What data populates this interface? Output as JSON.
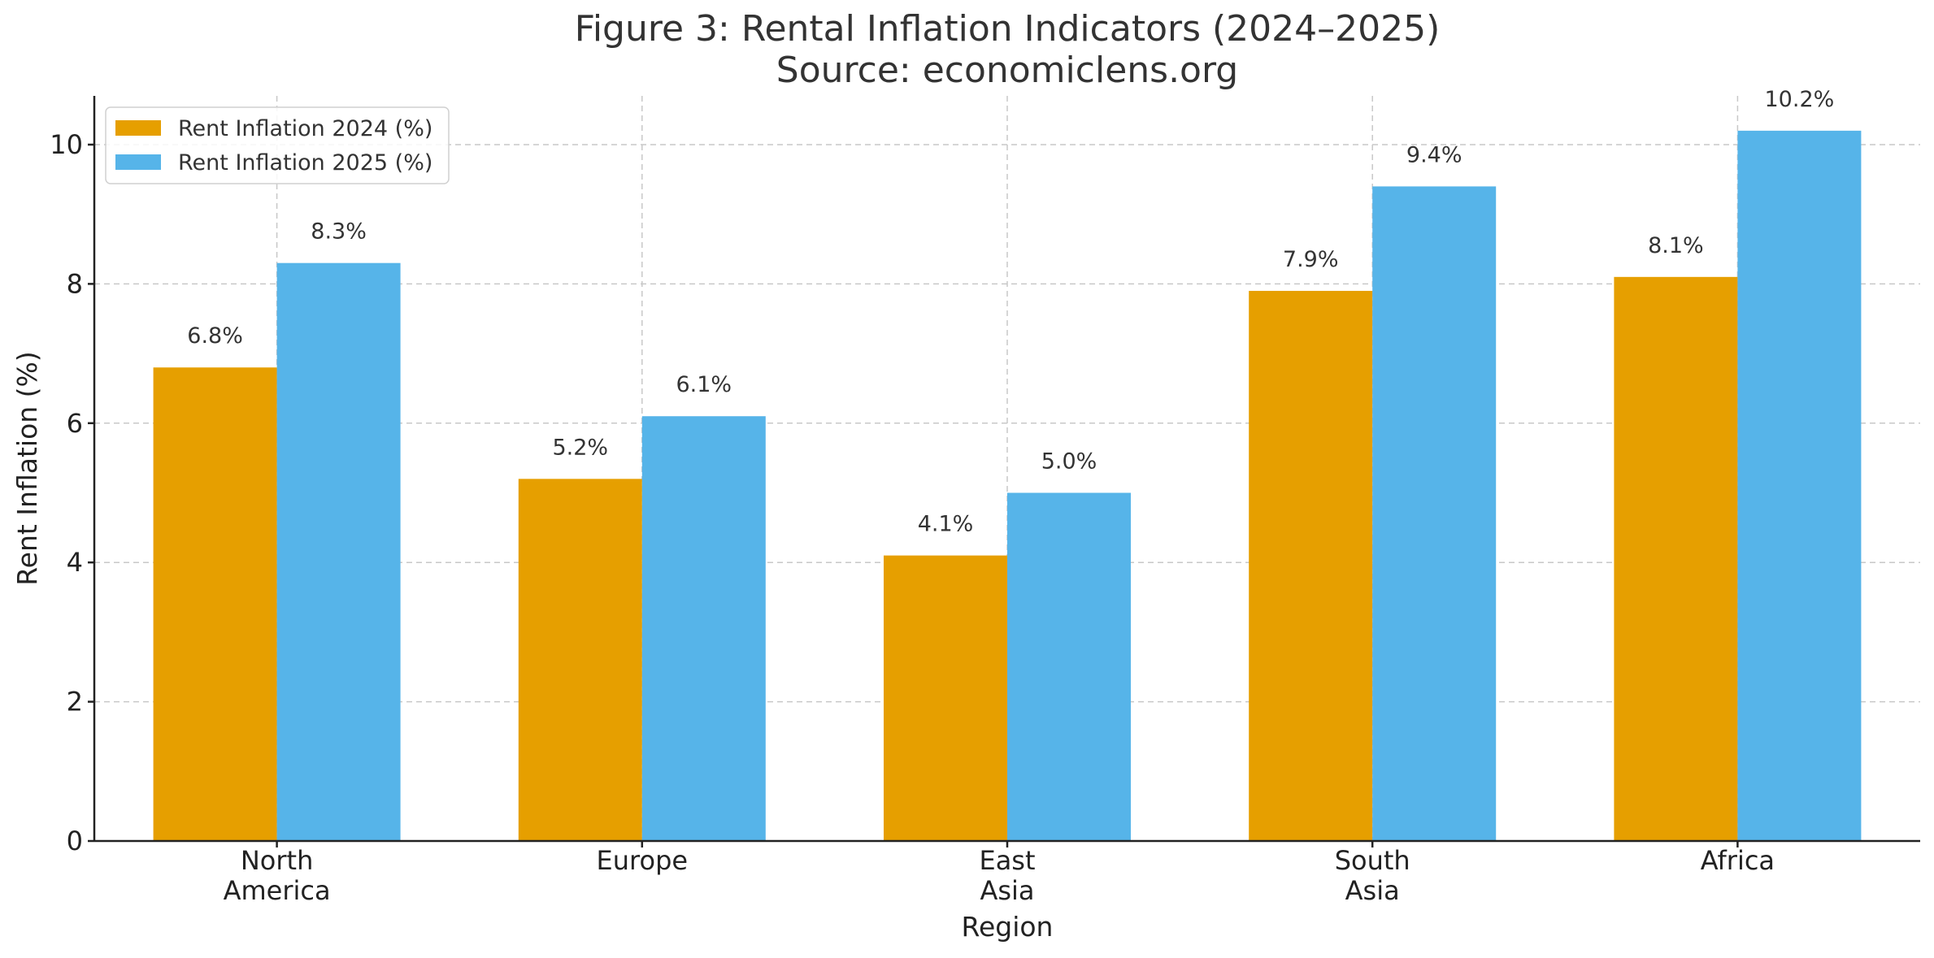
{
  "chart_data": {
    "type": "bar",
    "title_lines": [
      "Figure 3: Rental Inflation Indicators (2024–2025)",
      "Source: economiclens.org"
    ],
    "xlabel": "Region",
    "ylabel": "Rent Inflation (%)",
    "categories": [
      [
        "North",
        "America"
      ],
      [
        "Europe"
      ],
      [
        "East",
        "Asia"
      ],
      [
        "South",
        "Asia"
      ],
      [
        "Africa"
      ]
    ],
    "series": [
      {
        "name": "Rent Inflation 2024 (%)",
        "color": "#E69F00",
        "values": [
          6.8,
          5.2,
          4.1,
          7.9,
          8.1
        ],
        "labels": [
          "6.8%",
          "5.2%",
          "4.1%",
          "7.9%",
          "8.1%"
        ]
      },
      {
        "name": "Rent Inflation 2025 (%)",
        "color": "#56B4E9",
        "values": [
          8.3,
          6.1,
          5.0,
          9.4,
          10.2
        ],
        "labels": [
          "8.3%",
          "6.1%",
          "5.0%",
          "9.4%",
          "10.2%"
        ]
      }
    ],
    "ylim": [
      0,
      10.7
    ],
    "yticks": [
      0,
      2,
      4,
      6,
      8,
      10
    ],
    "grid": true,
    "legend": "top-left"
  }
}
